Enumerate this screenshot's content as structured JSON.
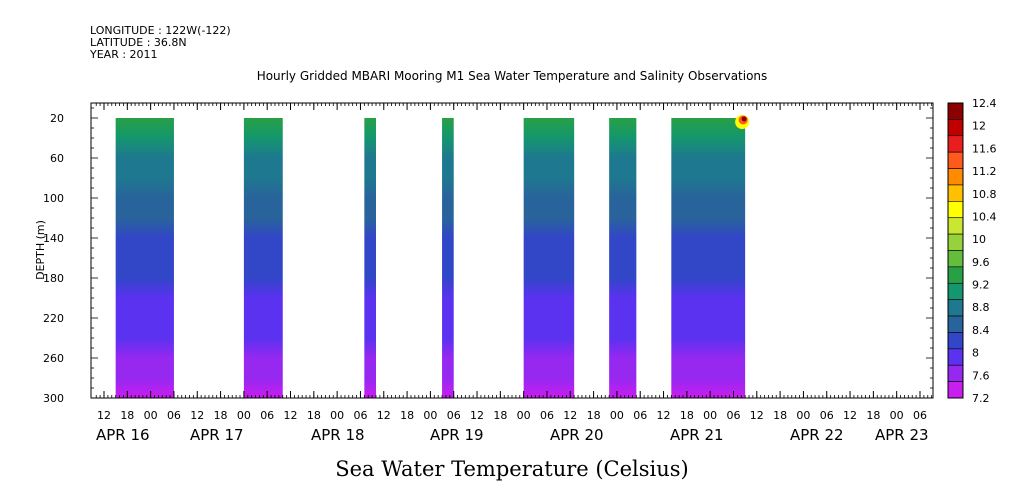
{
  "header": {
    "longitude": "LONGITUDE : 122W(-122)",
    "latitude": "LATITUDE : 36.8N",
    "year": "YEAR : 2011"
  },
  "chart_data": {
    "type": "heatmap",
    "title": "Hourly Gridded MBARI Mooring M1 Sea Water Temperature and Salinity Observations",
    "xlabel": "Sea Water Temperature (Celsius)",
    "ylabel": "DEPTH (m)",
    "y_ticks": [
      20,
      60,
      100,
      140,
      180,
      220,
      260,
      300
    ],
    "ylim": [
      300,
      5
    ],
    "x_hour_ticks": [
      "12",
      "18",
      "00",
      "06",
      "12",
      "18",
      "00",
      "06",
      "12",
      "18",
      "00",
      "06",
      "12",
      "18",
      "00",
      "06",
      "12",
      "18",
      "00",
      "06",
      "12",
      "18",
      "00",
      "06",
      "12",
      "18",
      "00",
      "06",
      "12",
      "18",
      "00",
      "06",
      "12",
      "18",
      "00",
      "06"
    ],
    "x_date_labels": [
      "APR 16",
      "APR 17",
      "APR 18",
      "APR 19",
      "APR 20",
      "APR 21",
      "APR 22",
      "APR 23"
    ],
    "colorbar": {
      "levels": [
        "12.4",
        "12",
        "11.6",
        "11.2",
        "10.8",
        "10.4",
        "10",
        "9.6",
        "9.2",
        "8.8",
        "8.4",
        "8",
        "7.6",
        "7.2"
      ],
      "colors": [
        "#8b0000",
        "#c00000",
        "#e81e1e",
        "#ff5a1e",
        "#ff8c00",
        "#ffc000",
        "#ffff00",
        "#c8e632",
        "#96d23c",
        "#64be3c",
        "#28a046",
        "#14966e",
        "#1e7890",
        "#28649b",
        "#3246c8",
        "#5a32f0",
        "#9628f0",
        "#c81ef0"
      ]
    },
    "segments": [
      {
        "start": "APR 16 15:00",
        "end": "APR 17 06:00"
      },
      {
        "start": "APR 18 00:00",
        "end": "APR 18 10:00"
      },
      {
        "start": "APR 19 07:00",
        "end": "APR 19 10:00"
      },
      {
        "start": "APR 20 03:00",
        "end": "APR 20 06:00"
      },
      {
        "start": "APR 21 00:00",
        "end": "APR 21 13:00"
      },
      {
        "start": "APR 21 22:00",
        "end": "APR 22 05:00"
      },
      {
        "start": "APR 22 14:00",
        "end": "APR 23 09:00"
      }
    ],
    "temperature_profile": [
      {
        "depth": 20,
        "temp": 9.3
      },
      {
        "depth": 40,
        "temp": 9.0
      },
      {
        "depth": 60,
        "temp": 8.9
      },
      {
        "depth": 80,
        "temp": 8.75
      },
      {
        "depth": 100,
        "temp": 8.55
      },
      {
        "depth": 120,
        "temp": 8.45
      },
      {
        "depth": 140,
        "temp": 8.35
      },
      {
        "depth": 160,
        "temp": 8.25
      },
      {
        "depth": 180,
        "temp": 8.1
      },
      {
        "depth": 200,
        "temp": 8.0
      },
      {
        "depth": 220,
        "temp": 7.9
      },
      {
        "depth": 240,
        "temp": 7.8
      },
      {
        "depth": 260,
        "temp": 7.65
      },
      {
        "depth": 280,
        "temp": 7.5
      },
      {
        "depth": 300,
        "temp": 7.35
      }
    ],
    "surface_max": {
      "time": "APR 23 09:00",
      "depth": 20,
      "temp": 12.4
    }
  }
}
